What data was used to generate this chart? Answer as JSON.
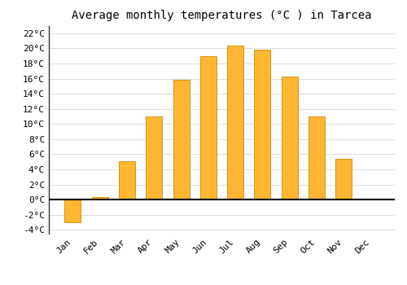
{
  "title": "Average monthly temperatures (°C ) in Tarcea",
  "months": [
    "Jan",
    "Feb",
    "Mar",
    "Apr",
    "May",
    "Jun",
    "Jul",
    "Aug",
    "Sep",
    "Oct",
    "Nov",
    "Dec"
  ],
  "values": [
    -3.0,
    0.3,
    5.1,
    11.0,
    15.8,
    19.0,
    20.4,
    19.8,
    16.3,
    11.0,
    5.4,
    0.0
  ],
  "bar_color": "#FFB733",
  "bar_edge_color": "#CC8800",
  "ylim": [
    -4.5,
    23
  ],
  "yticks": [
    -4,
    -2,
    0,
    2,
    4,
    6,
    8,
    10,
    12,
    14,
    16,
    18,
    20,
    22
  ],
  "ytick_labels": [
    "-4°C",
    "-2°C",
    "0°C",
    "2°C",
    "4°C",
    "6°C",
    "8°C",
    "10°C",
    "12°C",
    "14°C",
    "16°C",
    "18°C",
    "20°C",
    "22°C"
  ],
  "background_color": "#ffffff",
  "grid_color": "#dddddd",
  "title_fontsize": 10,
  "tick_fontsize": 8,
  "zero_line_color": "#000000",
  "left_spine_color": "#333333"
}
